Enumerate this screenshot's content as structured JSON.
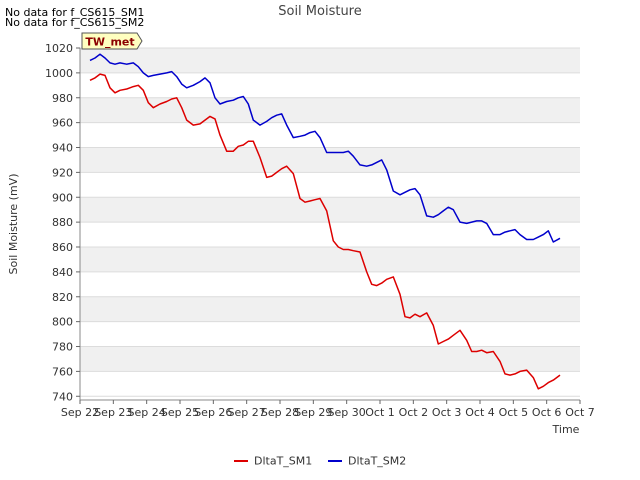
{
  "notices": [
    "No data for f_CS615_SM1",
    "No data for f_CS615_SM2"
  ],
  "badge": "TW_met",
  "chart_data": {
    "type": "line",
    "title": "Soil Moisture",
    "xlabel": "Time",
    "ylabel": "Soil Moisture (mV)",
    "ylim": [
      737,
      1020
    ],
    "yticks": [
      740,
      760,
      780,
      800,
      820,
      840,
      860,
      880,
      900,
      920,
      940,
      960,
      980,
      1000,
      1020
    ],
    "xlim": [
      0,
      15
    ],
    "xticks": [
      0,
      1,
      2,
      3,
      4,
      5,
      6,
      7,
      8,
      9,
      10,
      11,
      12,
      13,
      14,
      15
    ],
    "xtick_labels": [
      "Sep 22",
      "Sep 23",
      "Sep 24",
      "Sep 25",
      "Sep 26",
      "Sep 27",
      "Sep 28",
      "Sep 29",
      "Sep 30",
      "Oct 1",
      "Oct 2",
      "Oct 3",
      "Oct 4",
      "Oct 5",
      "Oct 6",
      "Oct 7"
    ],
    "grid": true,
    "series": [
      {
        "name": "DltaT_SM1",
        "color": "#dd0000",
        "x": [
          0.3,
          0.45,
          0.6,
          0.75,
          0.9,
          1.05,
          1.2,
          1.4,
          1.6,
          1.75,
          1.9,
          2.05,
          2.2,
          2.4,
          2.6,
          2.75,
          2.9,
          3.05,
          3.2,
          3.4,
          3.6,
          3.75,
          3.9,
          4.05,
          4.2,
          4.4,
          4.6,
          4.75,
          4.9,
          5.05,
          5.2,
          5.4,
          5.6,
          5.75,
          5.9,
          6.05,
          6.2,
          6.4,
          6.6,
          6.75,
          6.9,
          7.05,
          7.2,
          7.4,
          7.6,
          7.75,
          7.9,
          8.05,
          8.2,
          8.4,
          8.6,
          8.75,
          8.9,
          9.05,
          9.2,
          9.4,
          9.6,
          9.75,
          9.9,
          10.05,
          10.2,
          10.4,
          10.6,
          10.75,
          10.9,
          11.05,
          11.2,
          11.4,
          11.6,
          11.75,
          11.9,
          12.05,
          12.2,
          12.4,
          12.6,
          12.75,
          12.9,
          13.05,
          13.2,
          13.4,
          13.6,
          13.75,
          13.9,
          14.05,
          14.2,
          14.4
        ],
        "values": [
          994,
          996,
          999,
          998,
          988,
          984,
          986,
          987,
          989,
          990,
          986,
          976,
          972,
          975,
          977,
          979,
          980,
          972,
          962,
          958,
          959,
          962,
          965,
          963,
          950,
          937,
          937,
          941,
          942,
          945,
          945,
          932,
          916,
          917,
          920,
          923,
          925,
          919,
          899,
          896,
          897,
          898,
          899,
          889,
          865,
          860,
          858,
          858,
          857,
          856,
          840,
          830,
          829,
          831,
          834,
          836,
          822,
          804,
          803,
          806,
          804,
          807,
          797,
          782,
          784,
          786,
          789,
          793,
          785,
          776,
          776,
          777,
          775,
          776,
          768,
          758,
          757,
          758,
          760,
          761,
          755,
          746,
          748,
          751,
          753,
          757
        ]
      },
      {
        "name": "DltaT_SM2",
        "color": "#0000cc",
        "x": [
          0.3,
          0.45,
          0.6,
          0.75,
          0.9,
          1.05,
          1.2,
          1.4,
          1.6,
          1.75,
          1.9,
          2.05,
          2.2,
          2.4,
          2.6,
          2.75,
          2.9,
          3.05,
          3.2,
          3.4,
          3.6,
          3.75,
          3.9,
          4.05,
          4.2,
          4.4,
          4.6,
          4.75,
          4.9,
          5.05,
          5.2,
          5.4,
          5.6,
          5.75,
          5.9,
          6.05,
          6.2,
          6.4,
          6.6,
          6.75,
          6.9,
          7.05,
          7.2,
          7.4,
          7.6,
          7.75,
          7.9,
          8.05,
          8.2,
          8.4,
          8.6,
          8.75,
          8.9,
          9.05,
          9.2,
          9.4,
          9.6,
          9.75,
          9.9,
          10.05,
          10.2,
          10.4,
          10.6,
          10.75,
          10.9,
          11.05,
          11.2,
          11.4,
          11.6,
          11.75,
          11.9,
          12.05,
          12.2,
          12.4,
          12.6,
          12.75,
          12.9,
          13.05,
          13.2,
          13.4,
          13.6,
          13.75,
          13.9,
          14.05,
          14.2,
          14.4
        ],
        "values": [
          1010,
          1012,
          1015,
          1012,
          1008,
          1007,
          1008,
          1007,
          1008,
          1005,
          1000,
          997,
          998,
          999,
          1000,
          1001,
          997,
          991,
          988,
          990,
          993,
          996,
          992,
          980,
          975,
          977,
          978,
          980,
          981,
          975,
          962,
          958,
          961,
          964,
          966,
          967,
          958,
          948,
          949,
          950,
          952,
          953,
          948,
          936,
          936,
          936,
          936,
          937,
          933,
          926,
          925,
          926,
          928,
          930,
          922,
          905,
          902,
          904,
          906,
          907,
          902,
          885,
          884,
          886,
          889,
          892,
          890,
          880,
          879,
          880,
          881,
          881,
          879,
          870,
          870,
          872,
          873,
          874,
          870,
          866,
          866,
          868,
          870,
          873,
          864,
          867
        ]
      }
    ]
  }
}
